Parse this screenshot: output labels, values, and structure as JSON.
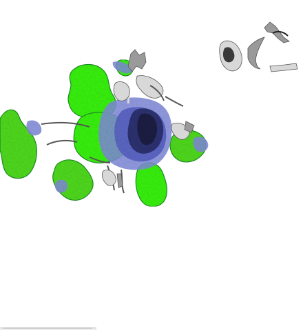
{
  "map": {
    "colors": {
      "background": "#ffffff",
      "vegetation_bright": "#38f012",
      "vegetation_mid": "#4fd81f",
      "vegetation_dark": "#1d8f22",
      "urban_low": "#7d87d8",
      "urban_mid": "#5a63c2",
      "urban_high": "#2b2f6b",
      "urban_core": "#1a1c40",
      "roads_light": "#d8d8d8",
      "roads_dark": "#555555"
    },
    "layers": [
      "vegetation-layer",
      "urban-density-layer",
      "road-network-layer",
      "grayscale-detail-layer"
    ]
  }
}
